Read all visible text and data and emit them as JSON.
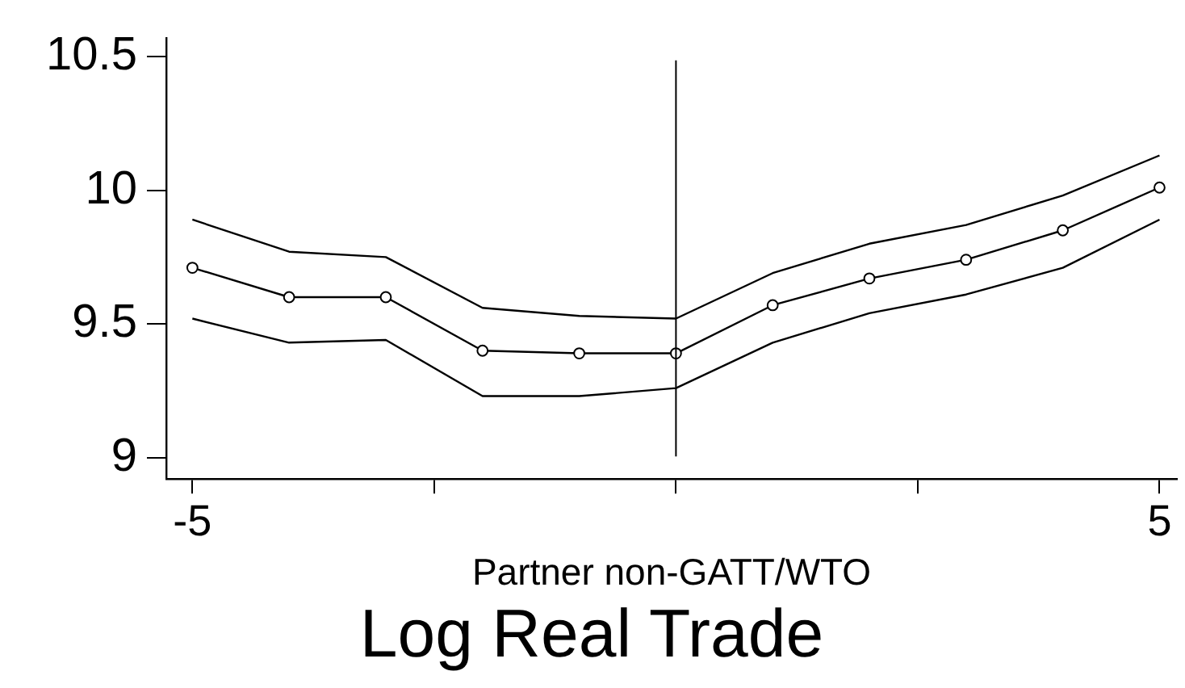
{
  "chart_data": {
    "type": "line",
    "title": "Log Real Trade",
    "xlabel": "Partner non-GATT/WTO",
    "x": [
      -5,
      -4,
      -3,
      -2,
      -1,
      0,
      1,
      2,
      3,
      4,
      5
    ],
    "series": [
      {
        "color": "#000000",
        "marker": "none",
        "values": [
          9.89,
          9.77,
          9.75,
          9.56,
          9.53,
          9.52,
          9.69,
          9.8,
          9.87,
          9.98,
          10.13
        ]
      },
      {
        "color": "#000000",
        "marker": "circle",
        "values": [
          9.71,
          9.6,
          9.6,
          9.4,
          9.39,
          9.39,
          9.57,
          9.67,
          9.74,
          9.85,
          10.01
        ]
      },
      {
        "color": "#000000",
        "marker": "none",
        "values": [
          9.52,
          9.43,
          9.44,
          9.23,
          9.23,
          9.26,
          9.43,
          9.54,
          9.61,
          9.71,
          9.89
        ]
      }
    ],
    "xlim": [
      -5.27,
      5.18
    ],
    "xticks": [
      -5,
      {
        "value": -2.5,
        "label": null
      },
      {
        "value": 0,
        "label": null
      },
      {
        "value": 2.5,
        "label": null
      },
      5
    ],
    "ylim": [
      8.92,
      10.57
    ],
    "yticks": [
      9,
      9.5,
      10,
      10.5
    ],
    "ref_lines": [
      {
        "axis": "x",
        "value": 0,
        "color": "#000000"
      }
    ],
    "grid": false,
    "legend": false,
    "line_style": "solid"
  }
}
